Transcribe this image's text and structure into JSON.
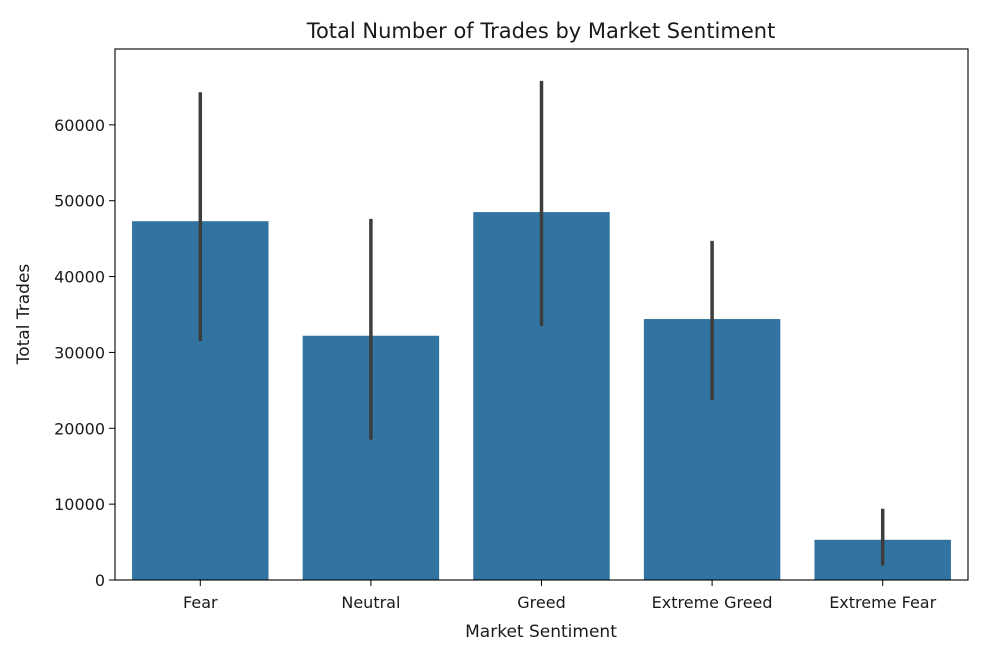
{
  "chart_data": {
    "type": "bar",
    "title": "Total Number of Trades by Market Sentiment",
    "xlabel": "Market Sentiment",
    "ylabel": "Total Trades",
    "categories": [
      "Fear",
      "Neutral",
      "Greed",
      "Extreme Greed",
      "Extreme Fear"
    ],
    "values": [
      47300,
      32200,
      48500,
      34400,
      5300
    ],
    "error_low": [
      31500,
      18500,
      33500,
      23700,
      1900
    ],
    "error_high": [
      64300,
      47600,
      65800,
      44700,
      9400
    ],
    "ylim": [
      0,
      70000
    ],
    "yticks": [
      0,
      10000,
      20000,
      30000,
      40000,
      50000,
      60000
    ],
    "ytick_labels": [
      "0",
      "10000",
      "20000",
      "30000",
      "40000",
      "50000",
      "60000"
    ],
    "bar_color": "#3274a1",
    "error_color": "#3d3d3d",
    "grid": false,
    "legend": "none"
  }
}
